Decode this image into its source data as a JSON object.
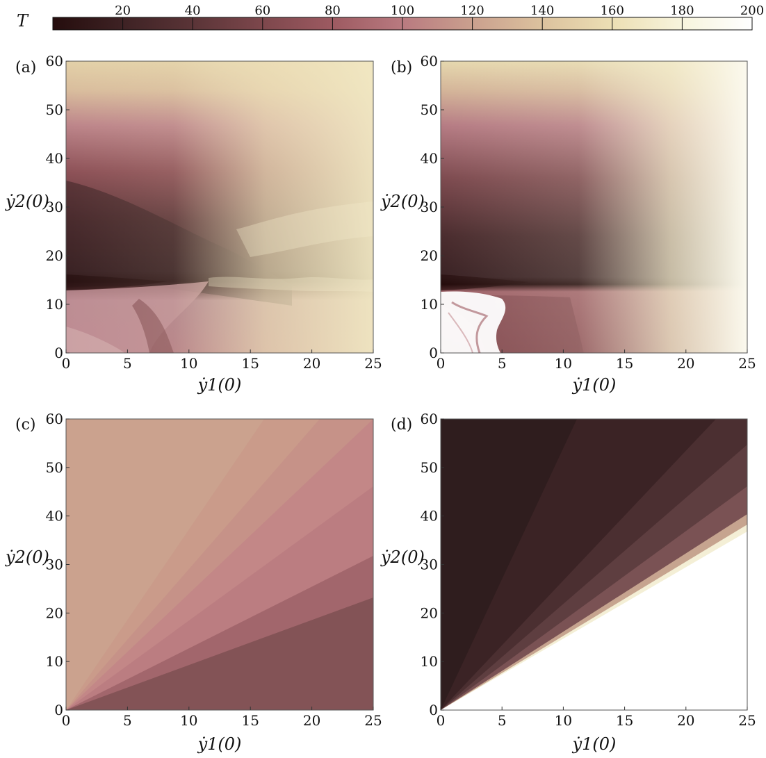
{
  "colorbar": {
    "label": "T",
    "min": 0,
    "max": 200,
    "ticks": [
      "20",
      "40",
      "60",
      "80",
      "100",
      "120",
      "140",
      "160",
      "180",
      "200"
    ],
    "colormap": [
      "#250d0d",
      "#3e2224",
      "#5a3437",
      "#7d474c",
      "#9d5a61",
      "#b97a80",
      "#caa08e",
      "#dcc29e",
      "#ecdfb4",
      "#f7f4dd",
      "#ffffff"
    ]
  },
  "chart_data": [
    {
      "type": "heatmap",
      "panel_label": "(a)",
      "xlabel": "ẏ1(0)",
      "ylabel": "ẏ2(0)",
      "xlim": [
        0,
        25
      ],
      "ylim": [
        0,
        60
      ],
      "xticks": [
        "0",
        "5",
        "10",
        "15",
        "20",
        "25"
      ],
      "yticks": [
        "0",
        "10",
        "20",
        "30",
        "40",
        "50",
        "60"
      ],
      "description_values": {
        "min_T_region": {
          "x": [
            0,
            2
          ],
          "y": [
            13,
            15
          ],
          "T": 2
        },
        "max_T_region": {
          "x": [
            20,
            25
          ],
          "y": [
            10,
            35
          ],
          "T": 140
        }
      }
    },
    {
      "type": "heatmap",
      "panel_label": "(b)",
      "xlabel": "ẏ1(0)",
      "ylabel": "ẏ2(0)",
      "xlim": [
        0,
        25
      ],
      "ylim": [
        0,
        60
      ],
      "xticks": [
        "0",
        "5",
        "10",
        "15",
        "20",
        "25"
      ],
      "yticks": [
        "0",
        "10",
        "20",
        "30",
        "40",
        "50",
        "60"
      ],
      "description_values": {
        "min_T_region": {
          "x": [
            0,
            2
          ],
          "y": [
            13,
            15
          ],
          "T": 2
        },
        "max_T_region": {
          "x": [
            22,
            25
          ],
          "y": [
            5,
            25
          ],
          "T": 180
        }
      }
    },
    {
      "type": "heatmap",
      "panel_label": "(c)",
      "xlabel": "ẏ1(0)",
      "ylabel": "ẏ2(0)",
      "xlim": [
        0,
        25
      ],
      "ylim": [
        0,
        60
      ],
      "xticks": [
        "0",
        "5",
        "10",
        "15",
        "20",
        "25"
      ],
      "yticks": [
        "0",
        "10",
        "20",
        "30",
        "40",
        "50",
        "60"
      ],
      "description_values": {
        "upper_left_T": 100,
        "lower_right_T": 62
      }
    },
    {
      "type": "heatmap",
      "panel_label": "(d)",
      "xlabel": "ẏ1(0)",
      "ylabel": "ẏ2(0)",
      "xlim": [
        0,
        25
      ],
      "ylim": [
        0,
        60
      ],
      "xticks": [
        "0",
        "5",
        "10",
        "15",
        "20",
        "25"
      ],
      "yticks": [
        "0",
        "10",
        "20",
        "30",
        "40",
        "50",
        "60"
      ],
      "description_values": {
        "upper_left_T": 10,
        "lower_right_T": 200
      }
    }
  ]
}
